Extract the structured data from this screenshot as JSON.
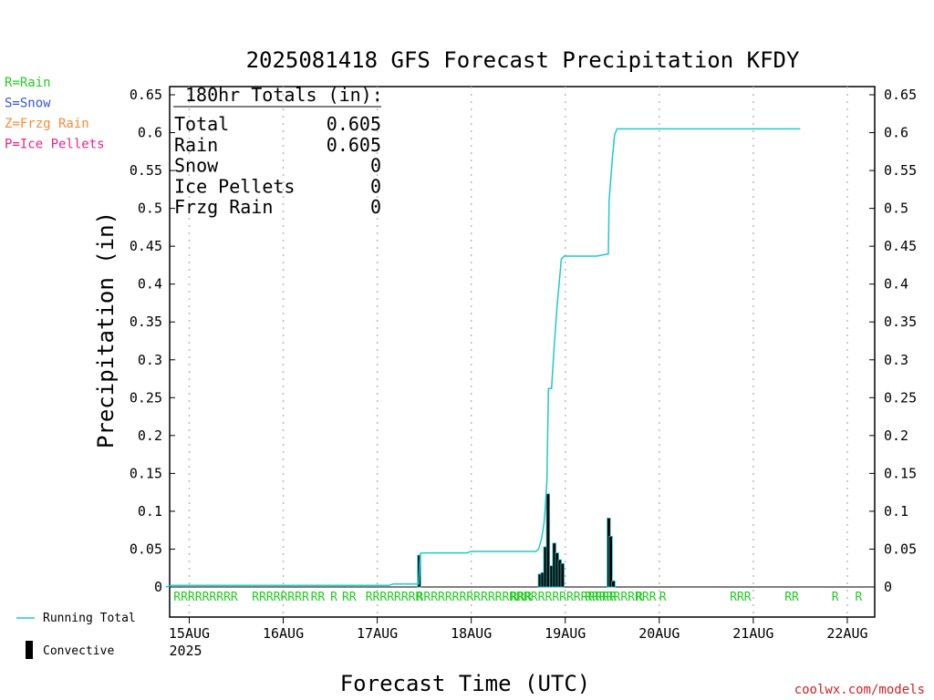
{
  "chart_data": {
    "type": "bar+line",
    "title": "2025081418 GFS Forecast Precipitation KFDY",
    "xlabel": "Forecast Time (UTC)",
    "ylabel": "Precipitation (in)",
    "ylim": [
      0,
      0.65
    ],
    "yticks": [
      "0",
      "0.05",
      "0.1",
      "0.15",
      "0.2",
      "0.25",
      "0.3",
      "0.35",
      "0.4",
      "0.45",
      "0.5",
      "0.55",
      "0.6",
      "0.65"
    ],
    "xlim_hours": [
      18,
      180
    ],
    "xticks": [
      {
        "hour": 24,
        "label": "15AUG",
        "sub": "2025"
      },
      {
        "hour": 48,
        "label": "16AUG",
        "sub": ""
      },
      {
        "hour": 72,
        "label": "17AUG",
        "sub": ""
      },
      {
        "hour": 96,
        "label": "18AUG",
        "sub": ""
      },
      {
        "hour": 120,
        "label": "19AUG",
        "sub": ""
      },
      {
        "hour": 144,
        "label": "20AUG",
        "sub": ""
      },
      {
        "hour": 168,
        "label": "21AUG",
        "sub": ""
      },
      {
        "hour": 192,
        "label": "22AUG",
        "sub": ""
      }
    ],
    "grid": "vertical dotted at each day",
    "ptype_legend": [
      {
        "text": "R=Rain",
        "color": "#22cc22"
      },
      {
        "text": "S=Snow",
        "color": "#3355ee"
      },
      {
        "text": "Z=Frzg Rain",
        "color": "#ff8833"
      },
      {
        "text": "P=Ice Pellets",
        "color": "#ee2288"
      }
    ],
    "totals_box": {
      "header": "180hr Totals (in):",
      "rows": [
        {
          "label": "Total",
          "value": "0.605"
        },
        {
          "label": "Rain",
          "value": "0.605"
        },
        {
          "label": "Snow",
          "value": "0"
        },
        {
          "label": "Ice Pellets",
          "value": "0"
        },
        {
          "label": "Frzg Rain",
          "value": "0"
        }
      ]
    },
    "series": [
      {
        "name": "Running Total",
        "type": "line",
        "color": "#22c8c8",
        "x_hours": [
          18,
          19.5,
          27,
          51,
          75,
          76,
          82,
          82.6,
          83,
          83.4,
          89,
          95,
          95.4,
          96,
          102,
          108,
          112.5,
          113.2,
          114,
          114.6,
          114.9,
          115.3,
          115.7,
          116.5,
          117.2,
          117.9,
          118.6,
          119,
          119.7,
          120.3,
          121,
          123,
          124,
          124.6,
          128,
          131,
          131.2,
          132,
          132.6,
          133.2,
          150,
          180
        ],
        "values": [
          0,
          0.002,
          0.002,
          0.002,
          0.002,
          0.004,
          0.004,
          0.004,
          0.044,
          0.045,
          0.045,
          0.045,
          0.046,
          0.047,
          0.047,
          0.047,
          0.047,
          0.05,
          0.065,
          0.085,
          0.105,
          0.14,
          0.262,
          0.262,
          0.32,
          0.37,
          0.41,
          0.433,
          0.437,
          0.437,
          0.437,
          0.437,
          0.437,
          0.437,
          0.437,
          0.44,
          0.51,
          0.565,
          0.597,
          0.605,
          0.605,
          0.605
        ]
      },
      {
        "name": "Convective",
        "type": "bar",
        "color": "#000000",
        "edge": "#22c8c8",
        "x_hours": [
          82.7,
          113.5,
          114.2,
          114.9,
          115.6,
          116.5,
          117.2,
          117.9,
          118.6,
          119.3,
          131.1,
          131.6,
          132.3
        ],
        "values": [
          0.042,
          0.017,
          0.019,
          0.053,
          0.123,
          0.028,
          0.058,
          0.045,
          0.036,
          0.031,
          0.091,
          0.067,
          0.008
        ]
      }
    ],
    "ptype_markers": [
      {
        "hour": 20,
        "text": "RRRRRRRRR"
      },
      {
        "hour": 40,
        "text": "RRRRRRRR"
      },
      {
        "hour": 55,
        "text": "RR"
      },
      {
        "hour": 60,
        "text": "R"
      },
      {
        "hour": 63,
        "text": "RR"
      },
      {
        "hour": 69,
        "text": "RRRRRRRR"
      },
      {
        "hour": 82,
        "text": "RRRRRRRRRRRRRRRRR"
      },
      {
        "hour": 106,
        "text": "RRR"
      },
      {
        "hour": 113,
        "text": "RRRRRRRRRRR"
      },
      {
        "hour": 125,
        "text": "RRRRRRRRRR"
      },
      {
        "hour": 138,
        "text": "R"
      },
      {
        "hour": 144,
        "text": "R"
      },
      {
        "hour": 162,
        "text": "RRR"
      },
      {
        "hour": 176,
        "text": "RR"
      },
      {
        "hour": 188,
        "text": "R"
      },
      {
        "hour": 194,
        "text": "R"
      }
    ]
  },
  "legend_bottom": {
    "running_total": "Running Total",
    "convective": "Convective"
  },
  "footer": {
    "credit": "coolwx.com/models"
  }
}
